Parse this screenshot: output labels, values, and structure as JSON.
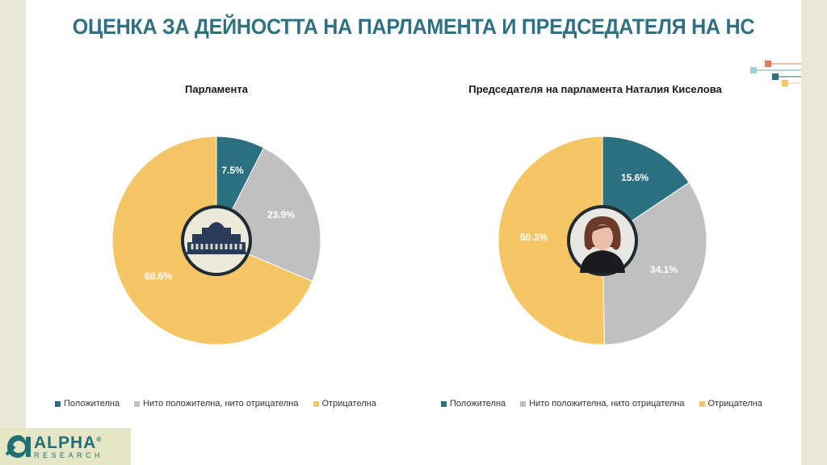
{
  "page": {
    "title": "ОЦЕНКА ЗА ДЕЙНОСТТА НА ПАРЛАМЕНТА И ПРЕДСЕДАТЕЛЯ НА НС"
  },
  "logo": {
    "name": "ALPHA",
    "sub": "RESEARCH",
    "mark": "®"
  },
  "chart_data": [
    {
      "type": "pie",
      "title": "Парламента",
      "categories": [
        "Положителна",
        "Нито положителна, нито отрицателна",
        "Отрицателна"
      ],
      "values": [
        7.5,
        23.9,
        68.6
      ],
      "labels": [
        "7.5%",
        "23.9%",
        "68.6%"
      ],
      "colors": [
        "#2c6f80",
        "#c0c0c0",
        "#f5c666"
      ],
      "center_image": "parliament-building",
      "legend_position": "bottom"
    },
    {
      "type": "pie",
      "title": "Председателя на парламента Наталия Киселова",
      "categories": [
        "Положителна",
        "Нито положителна, нито отрицателна",
        "Отрицателна"
      ],
      "values": [
        15.6,
        34.1,
        50.3
      ],
      "labels": [
        "15.6%",
        "34.1%",
        "50.3%"
      ],
      "colors": [
        "#2c6f80",
        "#c0c0c0",
        "#f5c666"
      ],
      "center_image": "portrait",
      "legend_position": "bottom"
    }
  ]
}
